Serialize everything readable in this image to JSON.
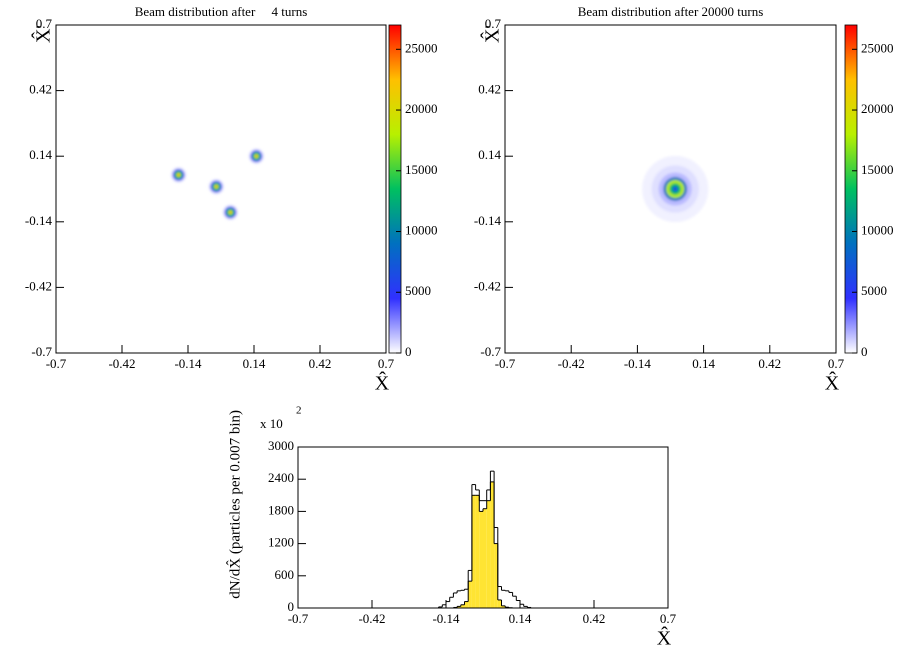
{
  "chart_data": [
    {
      "type": "heatmap",
      "title": "Beam distribution after     4 turns",
      "x_label": "X̂",
      "y_label": "X̂'",
      "xlim": [
        -0.7,
        0.7
      ],
      "ylim": [
        -0.7,
        0.7
      ],
      "xticks": [
        -0.7,
        -0.42,
        -0.14,
        0.14,
        0.42,
        0.7
      ],
      "yticks": [
        -0.7,
        -0.42,
        -0.14,
        0.14,
        0.42,
        0.7
      ],
      "zlim": [
        0,
        27000
      ],
      "zticks": [
        0,
        5000,
        10000,
        15000,
        20000,
        25000
      ],
      "colormap": [
        "#ffffff",
        "#3030ff",
        "#0070c0",
        "#00c060",
        "#b8f000",
        "#ffc000",
        "#ff0000"
      ],
      "blobs": [
        {
          "x": -0.18,
          "y": 0.06,
          "radii": [
            0.008,
            0.016,
            0.024,
            0.032
          ],
          "values": [
            21000,
            14000,
            6000,
            800
          ]
        },
        {
          "x": -0.02,
          "y": 0.01,
          "radii": [
            0.008,
            0.016,
            0.024,
            0.032
          ],
          "values": [
            21000,
            14000,
            6000,
            800
          ]
        },
        {
          "x": 0.04,
          "y": -0.1,
          "radii": [
            0.008,
            0.016,
            0.024,
            0.032
          ],
          "values": [
            21000,
            14000,
            6000,
            800
          ]
        },
        {
          "x": 0.15,
          "y": 0.14,
          "radii": [
            0.008,
            0.016,
            0.024,
            0.032
          ],
          "values": [
            21000,
            14000,
            6000,
            800
          ]
        }
      ]
    },
    {
      "type": "heatmap",
      "title": "Beam distribution after 20000 turns",
      "x_label": "X̂",
      "y_label": "X̂'",
      "xlim": [
        -0.7,
        0.7
      ],
      "ylim": [
        -0.7,
        0.7
      ],
      "xticks": [
        -0.7,
        -0.42,
        -0.14,
        0.14,
        0.42,
        0.7
      ],
      "yticks": [
        -0.7,
        -0.42,
        -0.14,
        0.14,
        0.42,
        0.7
      ],
      "zlim": [
        0,
        27000
      ],
      "zticks": [
        0,
        5000,
        10000,
        15000,
        20000,
        25000
      ],
      "colormap": [
        "#ffffff",
        "#3030ff",
        "#0070c0",
        "#00c060",
        "#b8f000",
        "#ffc000",
        "#ff0000"
      ],
      "blobs": [
        {
          "x": 0.02,
          "y": 0.0,
          "radii": [
            0.012,
            0.025,
            0.038,
            0.05,
            0.07,
            0.1,
            0.14
          ],
          "values": [
            7000,
            13000,
            18000,
            9000,
            1500,
            700,
            300
          ]
        }
      ]
    },
    {
      "type": "histogram",
      "x_label": "X̂",
      "y_label": "dN/dX̂ (particles per 0.007 bin)",
      "y_multiplier": "x 10",
      "y_exponent": "2",
      "xlim": [
        -0.7,
        0.7
      ],
      "ylim": [
        0,
        3000
      ],
      "xticks": [
        -0.7,
        -0.42,
        -0.14,
        0.14,
        0.42,
        0.7
      ],
      "yticks": [
        0,
        600,
        1200,
        1800,
        2400,
        3000
      ],
      "bins": [
        -0.21,
        -0.196,
        -0.182,
        -0.168,
        -0.154,
        -0.14,
        -0.126,
        -0.112,
        -0.098,
        -0.084,
        -0.07,
        -0.056,
        -0.042,
        -0.028,
        -0.014,
        0,
        0.014,
        0.028,
        0.042,
        0.056,
        0.07,
        0.084,
        0.098,
        0.112,
        0.126,
        0.14,
        0.154,
        0.168,
        0.182,
        0.196,
        0.21
      ],
      "series": [
        {
          "color": "#000000",
          "values": [
            0,
            0,
            0,
            20,
            60,
            120,
            200,
            280,
            320,
            330,
            350,
            700,
            2300,
            2200,
            2000,
            2000,
            2200,
            2550,
            1500,
            400,
            330,
            320,
            290,
            220,
            140,
            70,
            30,
            10,
            0,
            0
          ]
        },
        {
          "color": "#000000",
          "fill": "#ffe433",
          "values": [
            0,
            0,
            0,
            0,
            0,
            0,
            0,
            10,
            30,
            60,
            120,
            500,
            2100,
            2100,
            1800,
            1850,
            2000,
            2350,
            1200,
            150,
            40,
            15,
            5,
            0,
            0,
            0,
            0,
            0,
            0,
            0
          ]
        }
      ]
    }
  ]
}
